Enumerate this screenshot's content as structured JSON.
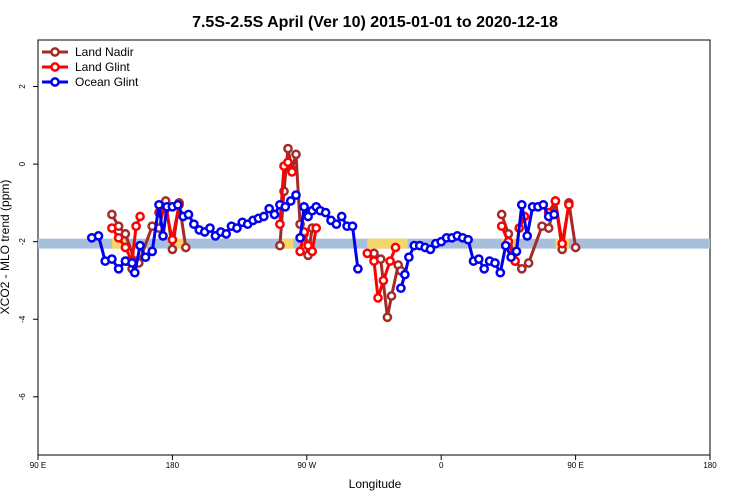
{
  "chart_data": {
    "type": "line",
    "title": "7.5S-2.5S April (Ver 10)   2015-01-01 to 2020-12-18",
    "xlabel": "Longitude",
    "ylabel": "XCO2 - MLO trend (ppm)",
    "ylim": [
      -7.5,
      3.2
    ],
    "y_ticks": [
      {
        "value": 2,
        "label": "2"
      },
      {
        "value": 0,
        "label": "0"
      },
      {
        "value": -2,
        "label": "-2"
      },
      {
        "value": -4,
        "label": "-4"
      },
      {
        "value": -6,
        "label": "-6"
      }
    ],
    "x_ticks": [
      {
        "label": "90 E"
      },
      {
        "label": "180"
      },
      {
        "label": "90 W"
      },
      {
        "label": "0"
      },
      {
        "label": "90 E"
      },
      {
        "label": "180"
      }
    ],
    "reference_line": {
      "value": -2.05,
      "ocean_color": "#a8bfdc",
      "land_color": "#f5d66e"
    },
    "legend_position": "top-left",
    "series": [
      {
        "name": "Land Nadir",
        "color": "#a52a2a",
        "segments": [
          [
            [
              -0.55,
              -1.3
            ],
            [
              -0.6,
              -1.6
            ],
            [
              -0.65,
              -1.8
            ],
            [
              -0.72,
              -2.5
            ]
          ],
          [
            [
              -0.67,
              -2.5
            ],
            [
              -0.7,
              -2.7
            ],
            [
              -0.75,
              -2.55
            ],
            [
              -0.85,
              -1.6
            ]
          ],
          [
            [
              -0.9,
              -1.65
            ],
            [
              -0.95,
              -0.95
            ],
            [
              -1.0,
              -2.2
            ],
            [
              -1.05,
              -1.0
            ],
            [
              -1.1,
              -2.15
            ]
          ],
          [
            [
              -1.8,
              -2.1
            ],
            [
              -1.83,
              -0.7
            ],
            [
              -1.86,
              0.4
            ],
            [
              -1.89,
              -0.15
            ],
            [
              -1.92,
              0.25
            ],
            [
              -1.95,
              -1.55
            ],
            [
              -1.98,
              -1.8
            ],
            [
              -2.01,
              -2.35
            ],
            [
              -2.04,
              -1.65
            ]
          ],
          [
            [
              -2.5,
              -2.3
            ],
            [
              -2.55,
              -2.45
            ],
            [
              -2.6,
              -3.95
            ],
            [
              -2.63,
              -3.4
            ],
            [
              -2.68,
              -2.6
            ],
            [
              -2.7,
              -2.75
            ]
          ],
          [
            [
              -3.45,
              -1.3
            ],
            [
              -3.5,
              -1.8
            ],
            [
              -3.55,
              -2.5
            ],
            [
              -3.6,
              -2.7
            ],
            [
              -3.65,
              -2.55
            ],
            [
              -3.75,
              -1.6
            ]
          ],
          [
            [
              -3.8,
              -1.65
            ],
            [
              -3.85,
              -0.95
            ],
            [
              -3.9,
              -2.2
            ],
            [
              -3.95,
              -1.0
            ],
            [
              -4.0,
              -2.15
            ]
          ]
        ]
      },
      {
        "name": "Land Glint",
        "color": "#ff0000",
        "segments": [
          [
            [
              -0.55,
              -1.65
            ],
            [
              -0.6,
              -1.9
            ],
            [
              -0.65,
              -2.15
            ],
            [
              -0.7,
              -2.5
            ],
            [
              -0.73,
              -1.6
            ],
            [
              -0.76,
              -1.35
            ]
          ],
          [
            [
              -0.9,
              -1.25
            ],
            [
              -0.95,
              -1.15
            ],
            [
              -1.0,
              -1.95
            ],
            [
              -1.05,
              -1.05
            ]
          ],
          [
            [
              -1.8,
              -1.55
            ],
            [
              -1.83,
              -0.05
            ],
            [
              -1.86,
              0.05
            ],
            [
              -1.89,
              -0.2
            ]
          ],
          [
            [
              -1.95,
              -2.25
            ],
            [
              -1.98,
              -1.75
            ],
            [
              -2.01,
              -2.1
            ],
            [
              -2.04,
              -2.25
            ],
            [
              -2.07,
              -1.65
            ]
          ],
          [
            [
              -2.45,
              -2.3
            ],
            [
              -2.5,
              -2.5
            ],
            [
              -2.53,
              -3.45
            ],
            [
              -2.57,
              -3.0
            ],
            [
              -2.62,
              -2.5
            ],
            [
              -2.66,
              -2.15
            ]
          ],
          [
            [
              -3.45,
              -1.6
            ],
            [
              -3.5,
              -2.0
            ],
            [
              -3.55,
              -2.5
            ],
            [
              -3.58,
              -1.65
            ],
            [
              -3.62,
              -1.35
            ]
          ],
          [
            [
              -3.8,
              -1.25
            ],
            [
              -3.85,
              -0.95
            ],
            [
              -3.9,
              -2.05
            ],
            [
              -3.95,
              -1.05
            ]
          ]
        ]
      },
      {
        "name": "Ocean Glint",
        "color": "#0000ee",
        "segments": [
          [
            [
              -0.4,
              -1.9
            ],
            [
              -0.45,
              -1.85
            ],
            [
              -0.5,
              -2.5
            ],
            [
              -0.55,
              -2.45
            ],
            [
              -0.6,
              -2.7
            ],
            [
              -0.65,
              -2.5
            ],
            [
              -0.7,
              -2.55
            ],
            [
              -0.72,
              -2.8
            ],
            [
              -0.76,
              -2.1
            ],
            [
              -0.8,
              -2.4
            ],
            [
              -0.85,
              -2.25
            ],
            [
              -0.9,
              -1.05
            ],
            [
              -0.93,
              -1.85
            ],
            [
              -0.96,
              -1.1
            ],
            [
              -1.0,
              -1.1
            ],
            [
              -1.04,
              -1.05
            ],
            [
              -1.08,
              -1.35
            ],
            [
              -1.12,
              -1.3
            ],
            [
              -1.16,
              -1.55
            ],
            [
              -1.2,
              -1.7
            ],
            [
              -1.24,
              -1.75
            ],
            [
              -1.28,
              -1.65
            ],
            [
              -1.32,
              -1.85
            ],
            [
              -1.36,
              -1.75
            ],
            [
              -1.4,
              -1.8
            ],
            [
              -1.44,
              -1.6
            ],
            [
              -1.48,
              -1.65
            ],
            [
              -1.52,
              -1.5
            ],
            [
              -1.56,
              -1.55
            ],
            [
              -1.6,
              -1.45
            ],
            [
              -1.64,
              -1.4
            ],
            [
              -1.68,
              -1.35
            ],
            [
              -1.72,
              -1.15
            ],
            [
              -1.76,
              -1.3
            ],
            [
              -1.8,
              -1.05
            ],
            [
              -1.84,
              -1.1
            ],
            [
              -1.88,
              -0.95
            ],
            [
              -1.92,
              -0.8
            ]
          ],
          [
            [
              -1.95,
              -1.9
            ],
            [
              -1.98,
              -1.1
            ],
            [
              -2.01,
              -1.35
            ],
            [
              -2.04,
              -1.2
            ],
            [
              -2.07,
              -1.1
            ],
            [
              -2.1,
              -1.2
            ],
            [
              -2.14,
              -1.25
            ],
            [
              -2.18,
              -1.45
            ],
            [
              -2.22,
              -1.55
            ],
            [
              -2.26,
              -1.35
            ],
            [
              -2.3,
              -1.6
            ],
            [
              -2.34,
              -1.6
            ],
            [
              -2.38,
              -2.7
            ]
          ],
          [
            [
              -2.7,
              -3.2
            ],
            [
              -2.73,
              -2.85
            ],
            [
              -2.76,
              -2.4
            ],
            [
              -2.8,
              -2.1
            ],
            [
              -2.84,
              -2.1
            ],
            [
              -2.88,
              -2.15
            ],
            [
              -2.92,
              -2.2
            ],
            [
              -2.96,
              -2.05
            ],
            [
              -3.0,
              -2.0
            ],
            [
              -3.04,
              -1.9
            ],
            [
              -3.08,
              -1.9
            ],
            [
              -3.12,
              -1.85
            ],
            [
              -3.16,
              -1.9
            ],
            [
              -3.2,
              -1.95
            ],
            [
              -3.24,
              -2.5
            ],
            [
              -3.28,
              -2.45
            ],
            [
              -3.32,
              -2.7
            ],
            [
              -3.36,
              -2.5
            ],
            [
              -3.4,
              -2.55
            ],
            [
              -3.44,
              -2.8
            ],
            [
              -3.48,
              -2.1
            ],
            [
              -3.52,
              -2.4
            ],
            [
              -3.56,
              -2.25
            ],
            [
              -3.6,
              -1.05
            ],
            [
              -3.64,
              -1.85
            ],
            [
              -3.68,
              -1.1
            ],
            [
              -3.72,
              -1.1
            ],
            [
              -3.76,
              -1.05
            ],
            [
              -3.8,
              -1.35
            ],
            [
              -3.84,
              -1.3
            ]
          ]
        ]
      }
    ]
  }
}
